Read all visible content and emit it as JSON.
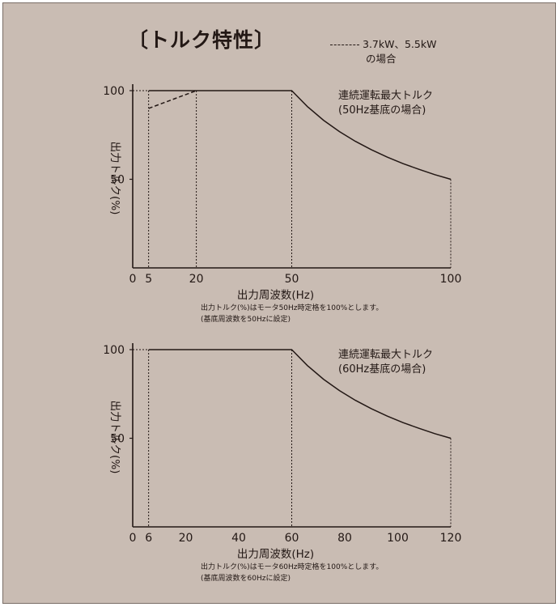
{
  "title": "〔トルク特性〕",
  "legend": {
    "line1": "3.7kW、5.5kW",
    "line2": "の場合"
  },
  "chart_data": [
    {
      "type": "line",
      "xlabel": "出力周波数(Hz)",
      "ylabel": "出力トルク(%)",
      "x_ticks": [
        0,
        5,
        20,
        50,
        100
      ],
      "y_ticks": [
        50,
        100
      ],
      "xlim": [
        0,
        100
      ],
      "ylim": [
        0,
        100
      ],
      "curve_label": [
        "連続運転最大トルク",
        "(50Hz基底の場合)"
      ],
      "series": [
        {
          "name": "連続運転最大トルク",
          "style": "solid",
          "x": [
            5,
            50,
            55,
            60,
            65,
            70,
            75,
            80,
            85,
            90,
            95,
            100
          ],
          "y": [
            100,
            100,
            90.9,
            83.3,
            76.9,
            71.4,
            66.7,
            62.5,
            58.8,
            55.6,
            52.6,
            50
          ]
        },
        {
          "name": "3.7kW、5.5kWの場合",
          "style": "dashed",
          "x": [
            5,
            20
          ],
          "y": [
            90,
            100
          ]
        }
      ],
      "guides_x": [
        5,
        20,
        50,
        100
      ],
      "notes": [
        "出力トルク(%)はモータ50Hz時定格を100%とします。",
        "(基底周波数を50Hzに設定)"
      ]
    },
    {
      "type": "line",
      "xlabel": "出力周波数(Hz)",
      "ylabel": "出力トルク(%)",
      "x_ticks": [
        0,
        6,
        20,
        40,
        60,
        80,
        100,
        120
      ],
      "y_ticks": [
        50,
        100
      ],
      "xlim": [
        0,
        120
      ],
      "ylim": [
        0,
        100
      ],
      "curve_label": [
        "連続運転最大トルク",
        "(60Hz基底の場合)"
      ],
      "series": [
        {
          "name": "連続運転最大トルク",
          "style": "solid",
          "x": [
            6,
            60,
            66,
            72,
            78,
            84,
            90,
            96,
            102,
            108,
            114,
            120
          ],
          "y": [
            100,
            100,
            90.9,
            83.3,
            76.9,
            71.4,
            66.7,
            62.5,
            58.8,
            55.6,
            52.6,
            50
          ]
        }
      ],
      "guides_x": [
        6,
        60,
        120
      ],
      "notes": [
        "出力トルク(%)はモータ60Hz時定格を100%とします。",
        "(基底周波数を60Hzに設定)"
      ]
    }
  ]
}
